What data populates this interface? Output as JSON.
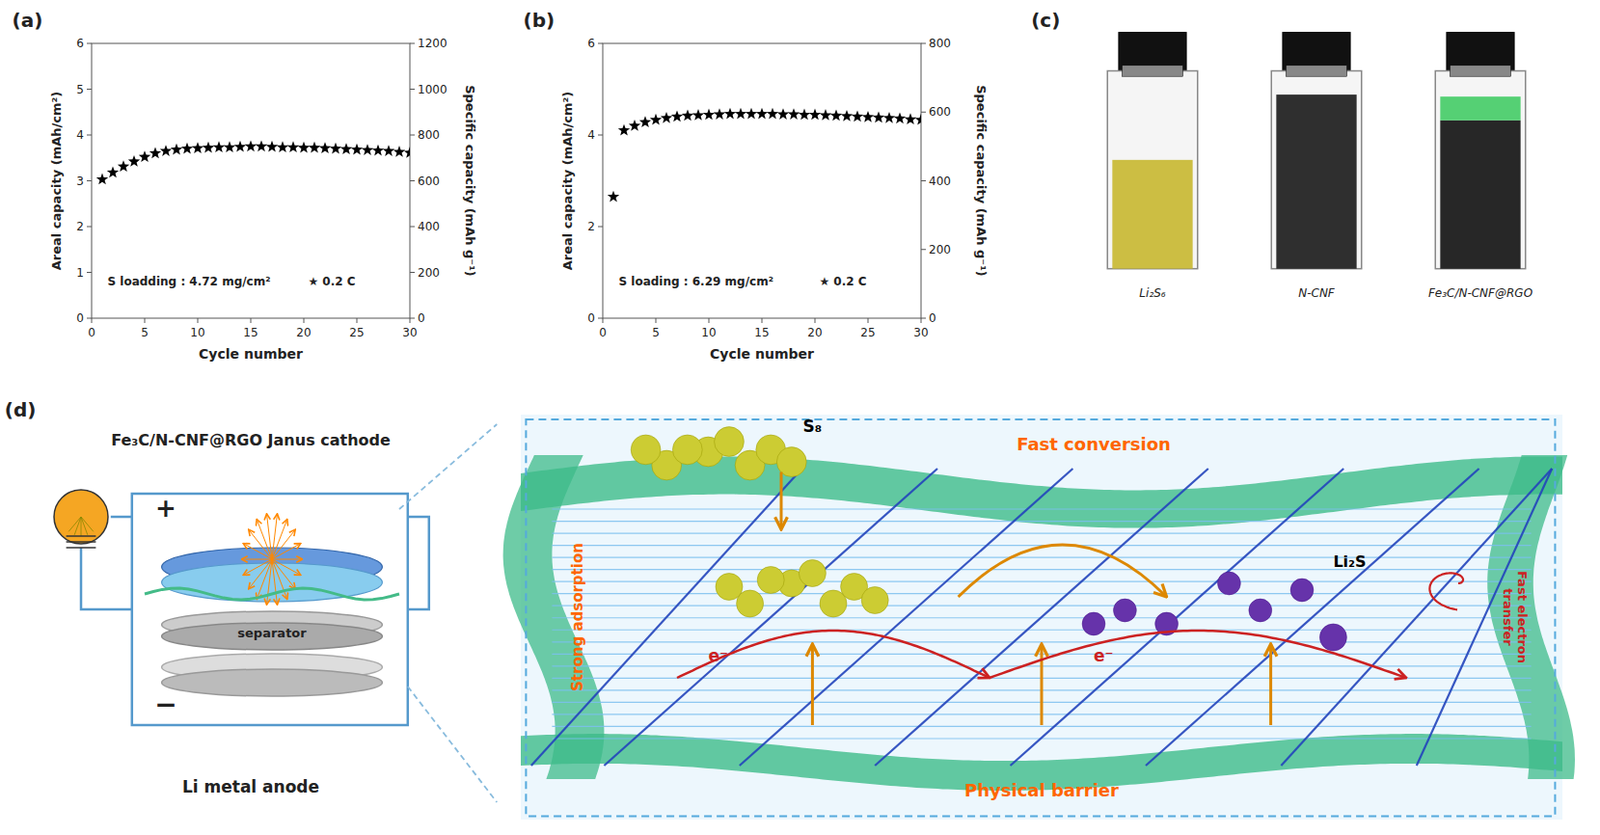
{
  "chart_data": [
    {
      "type": "scatter",
      "title": "(a)",
      "x_label": "Cycle number",
      "y_label": "Areal capacity (mAh/cm²)",
      "y2_label": "Specific capacity (mAh g⁻¹)",
      "xlim": [
        0,
        30
      ],
      "xticks": [
        0,
        5,
        10,
        15,
        20,
        25,
        30
      ],
      "ylim": [
        0,
        6
      ],
      "yticks": [
        0,
        1,
        2,
        3,
        4,
        5,
        6
      ],
      "y2lim": [
        0,
        1200
      ],
      "y2ticks": [
        0,
        200,
        400,
        600,
        800,
        1000,
        1200
      ],
      "grid": false,
      "annotations": [
        "S loadding :  4.72 mg/cm²",
        "★  0.2 C"
      ],
      "series": [
        {
          "x": [
            1,
            2,
            3,
            4,
            5,
            6,
            7,
            8,
            9,
            10,
            11,
            12,
            13,
            14,
            15,
            16,
            17,
            18,
            19,
            20,
            21,
            22,
            23,
            24,
            25,
            26,
            27,
            28,
            29,
            30
          ],
          "values": [
            3.03,
            3.18,
            3.31,
            3.42,
            3.52,
            3.6,
            3.65,
            3.68,
            3.7,
            3.71,
            3.72,
            3.73,
            3.73,
            3.74,
            3.75,
            3.75,
            3.74,
            3.73,
            3.73,
            3.72,
            3.72,
            3.71,
            3.7,
            3.69,
            3.68,
            3.67,
            3.66,
            3.65,
            3.63,
            3.61
          ],
          "color": "#000000",
          "marker": "star"
        }
      ]
    },
    {
      "type": "scatter",
      "title": "(b)",
      "x_label": "Cycle number",
      "y_label": "Areal capacity (mAh/cm²)",
      "y2_label": "Specific capacity (mAh g⁻¹)",
      "xlim": [
        0,
        30
      ],
      "xticks": [
        0,
        5,
        10,
        15,
        20,
        25,
        30
      ],
      "ylim": [
        0,
        6
      ],
      "yticks": [
        0,
        2,
        4,
        6
      ],
      "y2lim": [
        0,
        800
      ],
      "y2ticks": [
        0,
        200,
        400,
        600,
        800
      ],
      "grid": false,
      "annotations": [
        "S loading :  6.29 mg/cm²",
        "★  0.2 C"
      ],
      "series": [
        {
          "x": [
            1,
            2,
            3,
            4,
            5,
            6,
            7,
            8,
            9,
            10,
            11,
            12,
            13,
            14,
            15,
            16,
            17,
            18,
            19,
            20,
            21,
            22,
            23,
            24,
            25,
            26,
            27,
            28,
            29,
            30
          ],
          "values": [
            2.65,
            4.1,
            4.2,
            4.28,
            4.33,
            4.37,
            4.4,
            4.42,
            4.43,
            4.44,
            4.45,
            4.46,
            4.46,
            4.46,
            4.46,
            4.46,
            4.45,
            4.45,
            4.44,
            4.44,
            4.43,
            4.42,
            4.41,
            4.4,
            4.39,
            4.38,
            4.37,
            4.36,
            4.34,
            4.33
          ],
          "color": "#000000",
          "marker": "star"
        }
      ]
    },
    {
      "type": "diagram",
      "title": "(c)",
      "annotations": [
        "Li₂S₆",
        "N-CNF",
        "Fe₃C/N-CNF@RGO"
      ]
    },
    {
      "type": "diagram",
      "title": "(d)",
      "annotations": [
        "Fe₃C/N-CNF@RGO Janus cathode",
        "+",
        "−",
        "separator",
        "Li metal anode",
        "S₈",
        "Li₂S",
        "e⁻",
        "e⁻",
        "Fast conversion",
        "Strong adsorption",
        "Physical  barrier",
        "Fast electron\ntransfer"
      ]
    }
  ]
}
